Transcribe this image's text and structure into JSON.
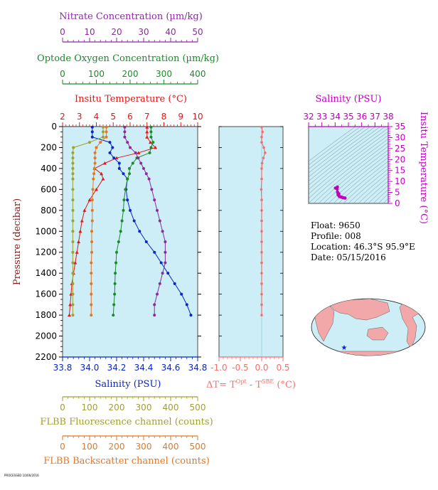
{
  "colors": {
    "nitrate": "#8b2b9e",
    "oxygen": "#1a8a2a",
    "temperature": "#e01818",
    "salinity": "#0a26c8",
    "fluorescence": "#a0a030",
    "backscatter": "#e07828",
    "deltaT": "#f07070",
    "ts_salinity": "#c000c0",
    "panel_bg": "#cdeef6",
    "land": "#f2a8a8",
    "ocean": "#cdeef6"
  },
  "float_info": {
    "float": "Float:  9650",
    "profile": "Profile:  008",
    "location": "Location:  46.3°S  95.9°E",
    "date": "Date:  05/15/2016"
  },
  "footer_text": "PROCESSED 10/06/2016",
  "chart_data": [
    {
      "id": "main_profile",
      "type": "line",
      "ylabel": "Pressure (decibar)",
      "ylim": [
        2200,
        0
      ],
      "yticks": [
        0,
        200,
        400,
        600,
        800,
        1000,
        1200,
        1400,
        1600,
        1800,
        2000,
        2200
      ],
      "pressure": [
        5,
        50,
        100,
        150,
        200,
        250,
        300,
        350,
        400,
        450,
        500,
        600,
        700,
        800,
        900,
        1000,
        1100,
        1200,
        1300,
        1400,
        1500,
        1600,
        1700,
        1800
      ],
      "axes": {
        "nitrate": {
          "label": "Nitrate Concentration (µm/kg)",
          "range": [
            0,
            50
          ],
          "ticks": [
            0,
            10,
            20,
            30,
            40,
            50
          ]
        },
        "oxygen": {
          "label": "Optode Oxygen Concentration (µm/kg)",
          "range": [
            0,
            400
          ],
          "ticks": [
            0,
            100,
            200,
            300,
            400
          ]
        },
        "temperature": {
          "label": "Insitu Temperature (°C)",
          "range": [
            2,
            10
          ],
          "ticks": [
            2,
            3,
            4,
            5,
            6,
            7,
            8,
            9,
            10
          ]
        },
        "salinity": {
          "label": "Salinity (PSU)",
          "range": [
            33.8,
            34.8
          ],
          "ticks": [
            "33.8",
            "34.0",
            "34.2",
            "34.4",
            "34.6",
            "34.8"
          ]
        },
        "fluorescence": {
          "label": "FLBB Fluorescence channel (counts)",
          "range": [
            0,
            500
          ],
          "ticks": [
            0,
            100,
            200,
            300,
            400,
            500
          ]
        },
        "backscatter": {
          "label": "FLBB Backscatter channel (counts)",
          "range": [
            0,
            500
          ],
          "ticks": [
            0,
            100,
            200,
            300,
            400,
            500
          ]
        }
      },
      "series": [
        {
          "key": "temperature",
          "values": [
            7.0,
            7.0,
            7.0,
            7.2,
            7.5,
            6.5,
            5.2,
            4.5,
            3.9,
            4.3,
            4.4,
            4.0,
            3.6,
            3.3,
            3.15,
            3.05,
            2.95,
            2.85,
            2.75,
            2.65,
            2.55,
            2.5,
            2.45,
            2.4
          ]
        },
        {
          "key": "salinity",
          "values": [
            34.02,
            34.02,
            34.02,
            34.15,
            34.17,
            34.15,
            34.18,
            34.22,
            34.22,
            34.25,
            34.28,
            34.27,
            34.28,
            34.3,
            34.33,
            34.37,
            34.42,
            34.48,
            34.53,
            34.58,
            34.63,
            34.68,
            34.72,
            34.75
          ]
        },
        {
          "key": "oxygen",
          "values": [
            262,
            262,
            262,
            268,
            262,
            258,
            220,
            208,
            198,
            198,
            192,
            186,
            182,
            180,
            176,
            172,
            166,
            160,
            158,
            156,
            155,
            154,
            152,
            150
          ]
        },
        {
          "key": "nitrate",
          "values": [
            23,
            23,
            23,
            24,
            25,
            27,
            28,
            29,
            30,
            31,
            32,
            33,
            34,
            35,
            36,
            37,
            38,
            38,
            38,
            37,
            36,
            35,
            34,
            34
          ]
        },
        {
          "key": "fluorescence",
          "values": [
            150,
            150,
            150,
            100,
            40,
            38,
            38,
            38,
            38,
            38,
            38,
            38,
            38,
            38,
            38,
            38,
            38,
            38,
            38,
            38,
            38,
            38,
            38,
            38
          ]
        },
        {
          "key": "backscatter",
          "values": [
            162,
            162,
            162,
            140,
            125,
            120,
            120,
            120,
            118,
            116,
            114,
            112,
            110,
            110,
            110,
            108,
            108,
            108,
            106,
            106,
            106,
            106,
            106,
            106
          ]
        }
      ]
    },
    {
      "id": "delta_t",
      "type": "line",
      "xlabel": "ΔT= T^Opt - T^SBE (°C)",
      "xlabel_main": "ΔT= T",
      "xlabel_sup1": "Opt",
      "xlabel_mid": " - T",
      "xlabel_sup2": "SBE",
      "xlabel_end": " (°C)",
      "xlim": [
        -1.0,
        0.5
      ],
      "xticks": [
        "-1.0",
        "-0.5",
        "0.0",
        "0.5"
      ],
      "pressure": [
        5,
        50,
        100,
        150,
        200,
        250,
        300,
        350,
        400,
        500,
        600,
        700,
        800,
        900,
        1000,
        1100,
        1200,
        1300,
        1400,
        1500,
        1600,
        1700,
        1800
      ],
      "values": [
        0.0,
        0.02,
        0.0,
        0.0,
        0.05,
        0.08,
        0.04,
        0.01,
        0.0,
        0.0,
        -0.01,
        0.0,
        0.0,
        0.0,
        0.0,
        0.0,
        0.0,
        0.0,
        0.0,
        0.0,
        0.0,
        0.0,
        0.0
      ]
    },
    {
      "id": "ts_diagram",
      "type": "scatter",
      "title": "Salinity (PSU)",
      "ylabel": "Insitu Temperature (°C)",
      "xlim": [
        32,
        38
      ],
      "xticks": [
        32,
        33,
        34,
        35,
        36,
        37,
        38
      ],
      "ylim": [
        0,
        35
      ],
      "yticks": [
        0,
        5,
        10,
        15,
        20,
        25,
        30,
        35
      ],
      "points": [
        {
          "s": 34.02,
          "t": 7.0
        },
        {
          "s": 34.15,
          "t": 7.2
        },
        {
          "s": 34.17,
          "t": 7.5
        },
        {
          "s": 34.15,
          "t": 6.5
        },
        {
          "s": 34.18,
          "t": 5.2
        },
        {
          "s": 34.22,
          "t": 4.5
        },
        {
          "s": 34.22,
          "t": 3.9
        },
        {
          "s": 34.25,
          "t": 4.3
        },
        {
          "s": 34.28,
          "t": 4.4
        },
        {
          "s": 34.27,
          "t": 4.0
        },
        {
          "s": 34.28,
          "t": 3.6
        },
        {
          "s": 34.3,
          "t": 3.3
        },
        {
          "s": 34.33,
          "t": 3.15
        },
        {
          "s": 34.37,
          "t": 3.05
        },
        {
          "s": 34.42,
          "t": 2.95
        },
        {
          "s": 34.48,
          "t": 2.85
        },
        {
          "s": 34.53,
          "t": 2.75
        },
        {
          "s": 34.58,
          "t": 2.65
        },
        {
          "s": 34.63,
          "t": 2.55
        },
        {
          "s": 34.68,
          "t": 2.5
        },
        {
          "s": 34.72,
          "t": 2.45
        },
        {
          "s": 34.75,
          "t": 2.4
        }
      ]
    }
  ]
}
